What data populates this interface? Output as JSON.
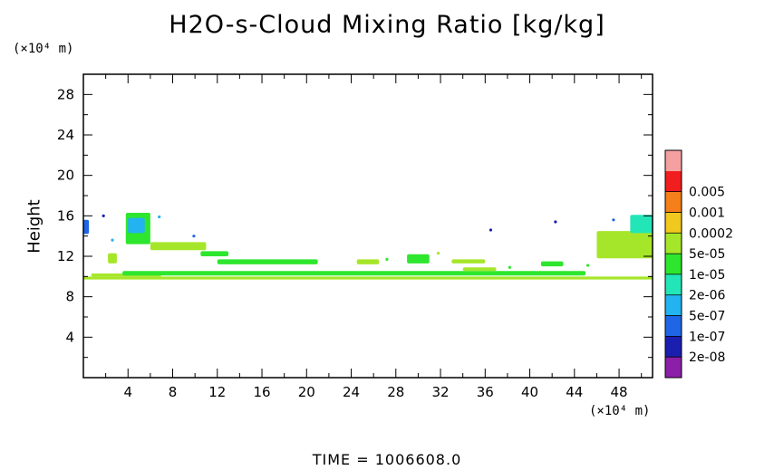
{
  "chart_data": {
    "type": "heatmap",
    "title": "H2O-s-Cloud Mixing Ratio [kg/kg]",
    "ylabel": "Height",
    "x_unit_label": "(×10⁴ m)",
    "y_unit_label": "(×10⁴ m)",
    "xlim": [
      0,
      51
    ],
    "ylim": [
      0,
      30
    ],
    "x_ticks": [
      4,
      8,
      12,
      16,
      20,
      24,
      28,
      32,
      36,
      40,
      44,
      48
    ],
    "y_ticks": [
      4,
      8,
      12,
      16,
      20,
      24,
      28
    ],
    "time_label": "TIME  =  1006608.0",
    "colorbar": {
      "levels": [
        "2e-08",
        "1e-07",
        "5e-07",
        "2e-06",
        "1e-05",
        "5e-05",
        "0.0002",
        "0.001",
        "0.005"
      ],
      "colors": [
        "#8b1fa8",
        "#1a1fb0",
        "#1f66e6",
        "#22b3f0",
        "#22e6b8",
        "#2ee62e",
        "#a6e62a",
        "#f0c81e",
        "#f57f1a",
        "#f01e1e",
        "#f5a0a0"
      ]
    },
    "features": [
      {
        "x": [
          0.0,
          51.0
        ],
        "y": [
          9.7,
          10.0
        ],
        "level": 6
      },
      {
        "x": [
          0.7,
          7.0
        ],
        "y": [
          10.0,
          10.3
        ],
        "level": 6
      },
      {
        "x": [
          3.5,
          45.0
        ],
        "y": [
          10.1,
          10.55
        ],
        "level": 5
      },
      {
        "x": [
          12.0,
          21.0
        ],
        "y": [
          11.2,
          11.7
        ],
        "level": 5
      },
      {
        "x": [
          3.8,
          6.0
        ],
        "y": [
          13.2,
          16.3
        ],
        "level": 5
      },
      {
        "x": [
          4.0,
          5.5
        ],
        "y": [
          14.3,
          15.8
        ],
        "level": 3
      },
      {
        "x": [
          6.0,
          11.0
        ],
        "y": [
          12.6,
          13.4
        ],
        "level": 6
      },
      {
        "x": [
          10.5,
          13.0
        ],
        "y": [
          12.0,
          12.5
        ],
        "level": 5
      },
      {
        "x": [
          46.0,
          51.0
        ],
        "y": [
          11.8,
          14.5
        ],
        "level": 6
      },
      {
        "x": [
          49.0,
          51.0
        ],
        "y": [
          14.3,
          16.1
        ],
        "level": 4
      },
      {
        "x": [
          0.0,
          0.5
        ],
        "y": [
          14.2,
          15.6
        ],
        "level": 2
      },
      {
        "x": [
          2.2,
          3.0
        ],
        "y": [
          11.3,
          12.3
        ],
        "level": 6
      },
      {
        "x": [
          24.5,
          26.5
        ],
        "y": [
          11.2,
          11.7
        ],
        "level": 6
      },
      {
        "x": [
          29.0,
          31.0
        ],
        "y": [
          11.3,
          12.2
        ],
        "level": 5
      },
      {
        "x": [
          33.0,
          36.0
        ],
        "y": [
          11.3,
          11.7
        ],
        "level": 6
      },
      {
        "x": [
          41.0,
          43.0
        ],
        "y": [
          11.0,
          11.5
        ],
        "level": 5
      },
      {
        "x": [
          34.0,
          37.0
        ],
        "y": [
          10.55,
          10.9
        ],
        "level": 6
      }
    ],
    "specks": [
      {
        "x": 36.5,
        "y": 14.6,
        "level": 1
      },
      {
        "x": 42.3,
        "y": 15.4,
        "level": 1
      },
      {
        "x": 1.8,
        "y": 16.0,
        "level": 1
      },
      {
        "x": 6.8,
        "y": 15.9,
        "level": 3
      },
      {
        "x": 9.9,
        "y": 14.0,
        "level": 2
      },
      {
        "x": 2.6,
        "y": 13.6,
        "level": 3
      },
      {
        "x": 47.5,
        "y": 15.6,
        "level": 2
      },
      {
        "x": 45.2,
        "y": 11.1,
        "level": 5
      },
      {
        "x": 38.2,
        "y": 10.9,
        "level": 5
      },
      {
        "x": 27.2,
        "y": 11.7,
        "level": 5
      },
      {
        "x": 31.8,
        "y": 12.3,
        "level": 6
      }
    ]
  }
}
